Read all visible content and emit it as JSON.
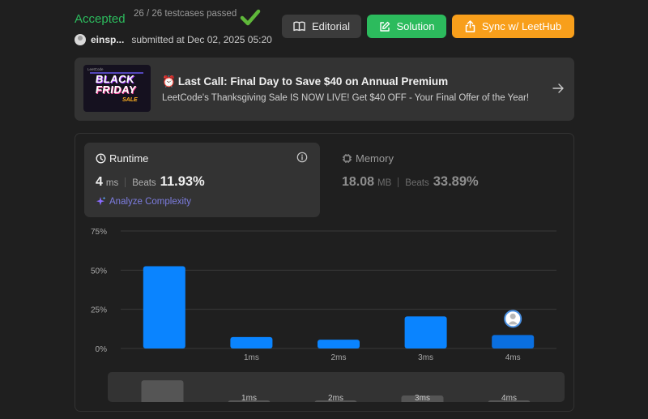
{
  "header": {
    "status": "Accepted",
    "testcases": "26 / 26 testcases passed",
    "username": "einsp...",
    "submitted": "submitted at Dec 02, 2025 05:20"
  },
  "buttons": {
    "editorial": "Editorial",
    "solution": "Solution",
    "sync": "Sync w/ LeetHub"
  },
  "banner": {
    "image_brand": "LeetCode",
    "image_line1": "BLACK",
    "image_line2": "FRIDAY",
    "image_line3": "SALE",
    "clock": "⏰",
    "title": "Last Call: Final Day to Save $40 on Annual Premium",
    "subtitle": "LeetCode's Thanksgiving Sale IS NOW LIVE! Get $40 OFF - Your Final Offer of the Year!"
  },
  "runtime": {
    "title": "Runtime",
    "value": "4",
    "unit": "ms",
    "beats_label": "Beats",
    "beats_pct": "11.93%",
    "analyze": "Analyze Complexity"
  },
  "memory": {
    "title": "Memory",
    "value": "18.08",
    "unit": "MB",
    "beats_label": "Beats",
    "beats_pct": "33.89%"
  },
  "colors": {
    "accent_green": "#2cbb5d",
    "accent_orange": "#f89f1b",
    "bar_blue": "#0a84ff"
  },
  "chart_data": {
    "type": "bar",
    "categories": [
      "",
      "1ms",
      "2ms",
      "3ms",
      "4ms"
    ],
    "values": [
      52.5,
      7.3,
      5.6,
      20.5,
      8.6
    ],
    "ylim": [
      0,
      75
    ],
    "yticks": [
      "0%",
      "25%",
      "50%",
      "75%"
    ],
    "ytick_values": [
      0,
      25,
      50,
      75
    ],
    "highlight_category": "4ms",
    "grid": true
  },
  "scrubber": {
    "labels": [
      "",
      "1ms",
      "2ms",
      "3ms",
      "4ms"
    ],
    "values": [
      52.5,
      7.3,
      5.6,
      20.5,
      8.6
    ]
  }
}
